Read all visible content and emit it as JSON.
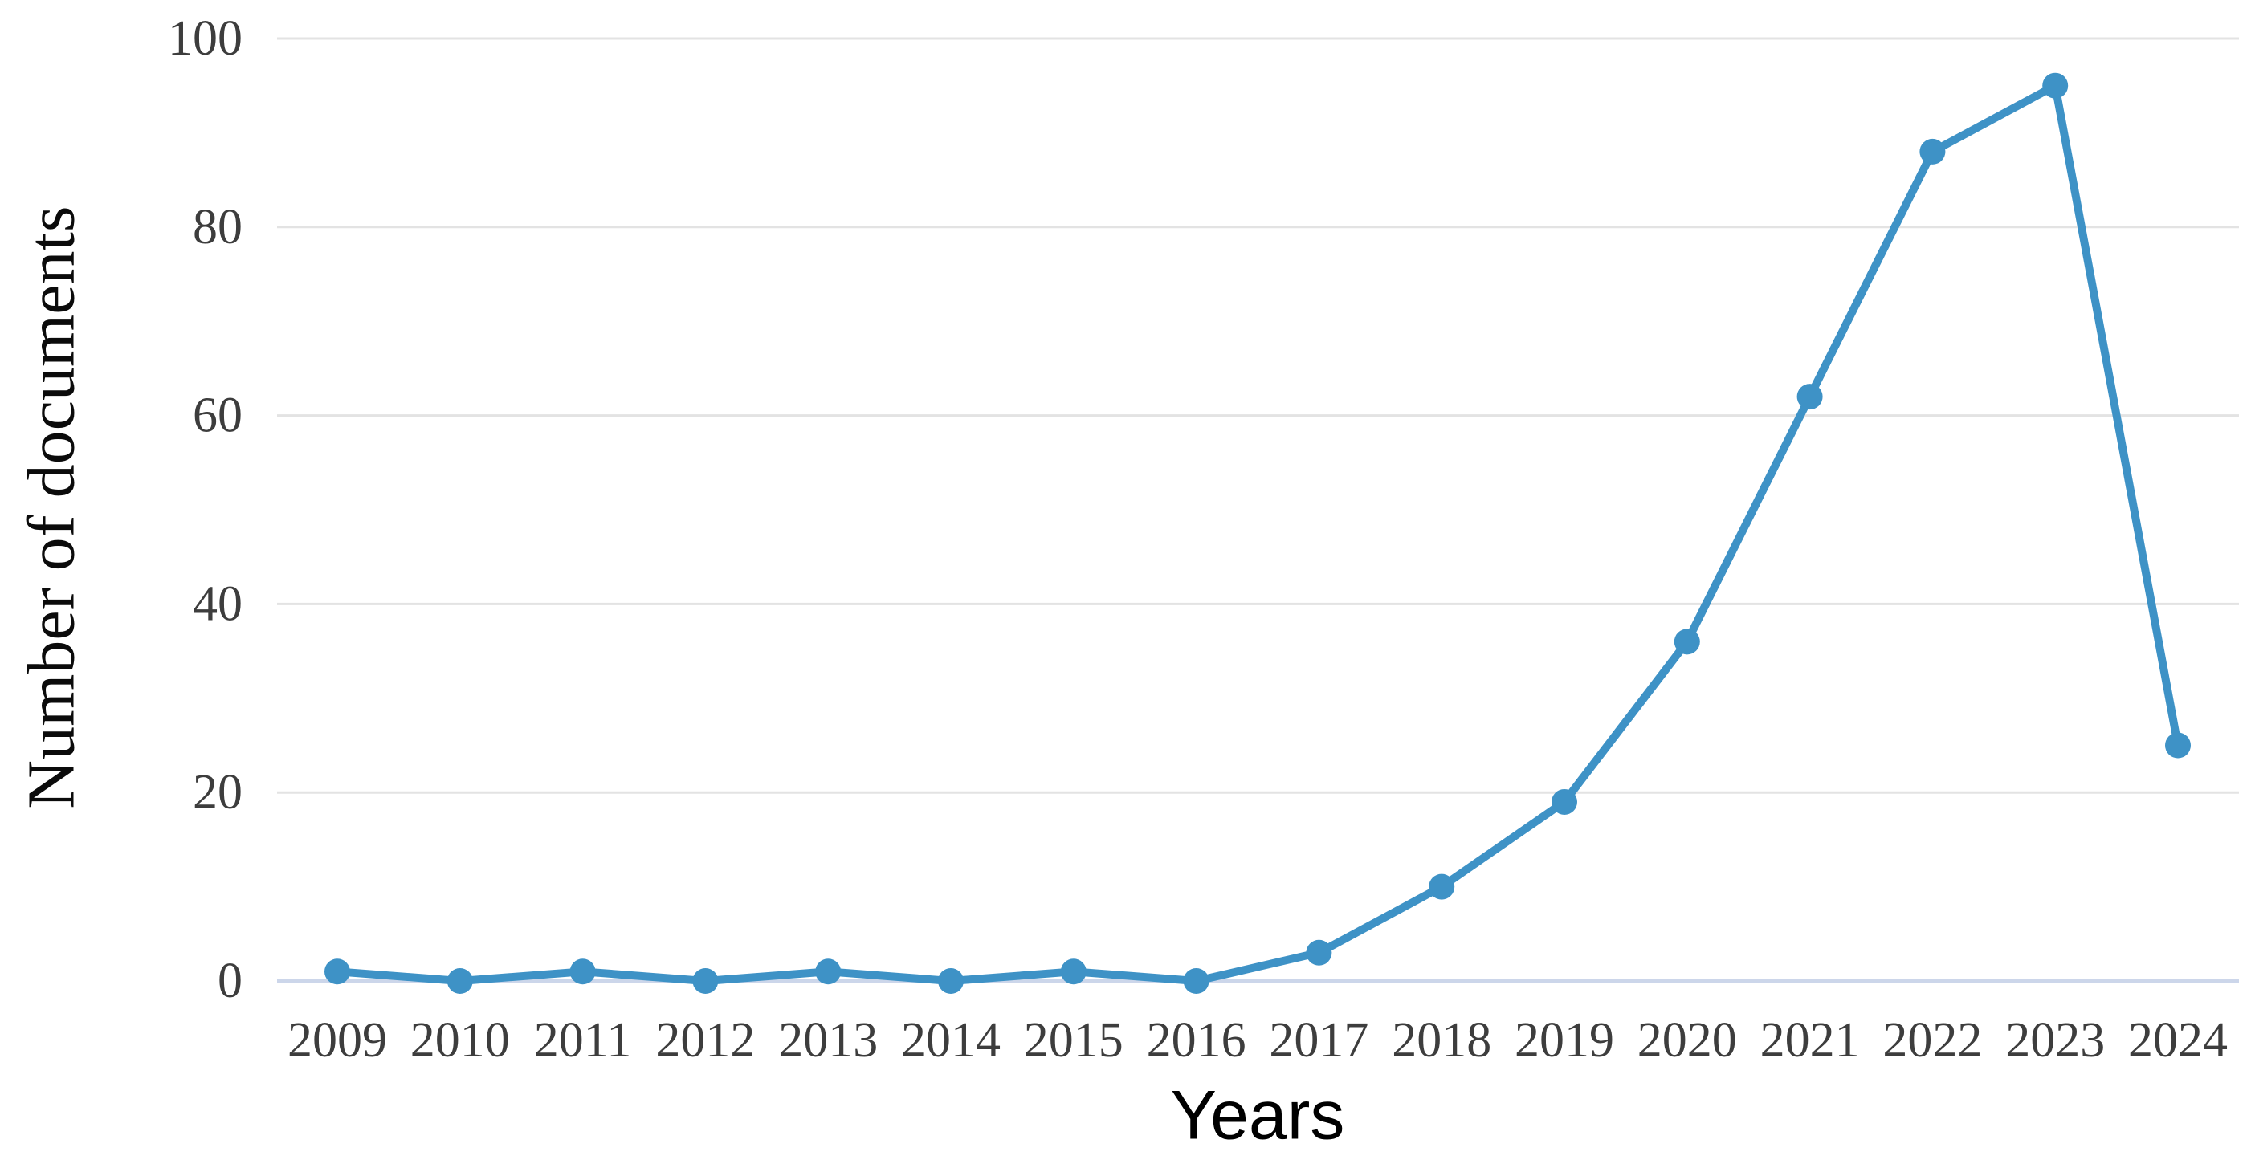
{
  "figure": {
    "background": "#ffffff"
  },
  "chart_data": {
    "type": "line",
    "title": "",
    "xlabel": "Years",
    "ylabel": "Number of documents",
    "x": [
      "2009",
      "2010",
      "2011",
      "2012",
      "2013",
      "2014",
      "2015",
      "2016",
      "2017",
      "2018",
      "2019",
      "2020",
      "2021",
      "2022",
      "2023",
      "2024"
    ],
    "series": [
      {
        "name": "Number of documents",
        "values": [
          1,
          0,
          1,
          0,
          1,
          0,
          1,
          0,
          3,
          10,
          19,
          36,
          62,
          88,
          95,
          25
        ]
      }
    ],
    "ylim": [
      0,
      100
    ],
    "yticks": [
      0,
      20,
      40,
      60,
      80,
      100
    ],
    "grid": "horizontal-only",
    "legend": "none",
    "colors": {
      "line": "#3e92c6",
      "marker": "#3e92c6",
      "gridline": "#e3e3e3",
      "baseline": "#ccd6ea",
      "tick_label": "#3d3d3d",
      "axis_title": "#0b0b0b"
    }
  }
}
